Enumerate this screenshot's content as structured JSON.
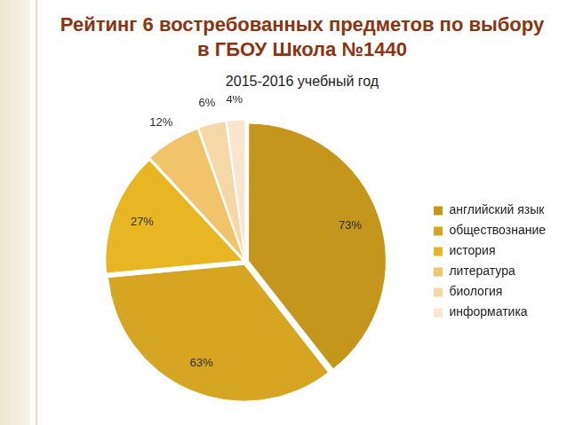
{
  "chart_data": {
    "type": "pie",
    "title": "Рейтинг 6 востребованных предметов по выбору в ГБОУ Школа №1440",
    "subtitle": "2015-2016 учебный год",
    "categories": [
      "английский язык",
      "обществознание",
      "история",
      "литература",
      "биология",
      "информатика"
    ],
    "values": [
      73,
      63,
      27,
      12,
      6,
      4
    ],
    "value_labels": [
      "73%",
      "63%",
      "27%",
      "12%",
      "6%",
      "4%"
    ],
    "colors": [
      "#c4961c",
      "#d6a622",
      "#e8b523",
      "#f1c46c",
      "#f6d8a8",
      "#fae6cf"
    ],
    "legend": "right",
    "data_labels": true
  }
}
